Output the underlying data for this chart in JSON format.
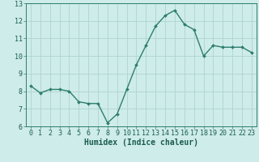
{
  "x": [
    0,
    1,
    2,
    3,
    4,
    5,
    6,
    7,
    8,
    9,
    10,
    11,
    12,
    13,
    14,
    15,
    16,
    17,
    18,
    19,
    20,
    21,
    22,
    23
  ],
  "y": [
    8.3,
    7.9,
    8.1,
    8.1,
    8.0,
    7.4,
    7.3,
    7.3,
    6.2,
    6.7,
    8.1,
    9.5,
    10.6,
    11.7,
    12.3,
    12.6,
    11.8,
    11.5,
    10.0,
    10.6,
    10.5,
    10.5,
    10.5,
    10.2
  ],
  "line_color": "#2e7d6e",
  "marker": "D",
  "marker_size": 2.0,
  "bg_color": "#ceecea",
  "grid_color": "#aed4d0",
  "xlabel": "Humidex (Indice chaleur)",
  "xlim": [
    -0.5,
    23.5
  ],
  "ylim": [
    6,
    13
  ],
  "yticks": [
    6,
    7,
    8,
    9,
    10,
    11,
    12,
    13
  ],
  "xticks": [
    0,
    1,
    2,
    3,
    4,
    5,
    6,
    7,
    8,
    9,
    10,
    11,
    12,
    13,
    14,
    15,
    16,
    17,
    18,
    19,
    20,
    21,
    22,
    23
  ],
  "tick_color": "#2e7d6e",
  "label_color": "#1a5c50",
  "line_width": 1.0,
  "xlabel_fontsize": 7.0,
  "tick_fontsize": 6.0
}
